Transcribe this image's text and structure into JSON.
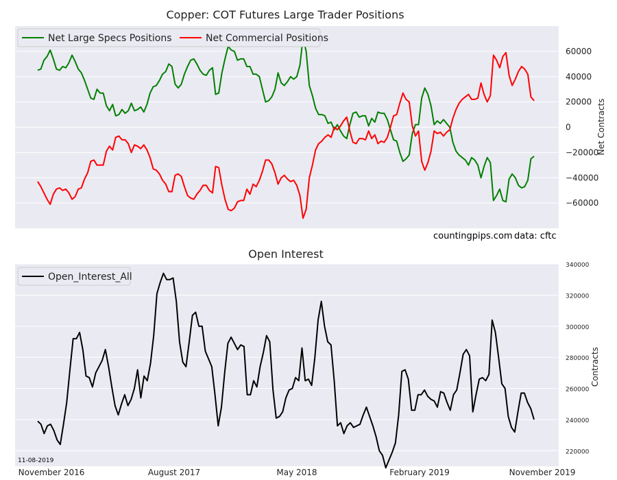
{
  "chart_data": [
    {
      "type": "line",
      "title": "Copper: COT Futures Large Trader Positions",
      "ylabel": "Net Contracts",
      "ylim": [
        -80000,
        80000
      ],
      "yticks": [
        -60000,
        -40000,
        -20000,
        0,
        20000,
        40000,
        60000
      ],
      "ytick_labels": [
        "−60000",
        "−40000",
        "−20000",
        "0",
        "20000",
        "40000",
        "60000"
      ],
      "grid": true,
      "legend_position": "top-left",
      "annotations": [
        "countingpips.com",
        "data: cftc"
      ],
      "series": [
        {
          "name": "Net Large Specs Positions",
          "color": "#008000",
          "values": [
            45000,
            46000,
            53000,
            56000,
            61000,
            54000,
            46000,
            45000,
            48000,
            47000,
            51000,
            57000,
            52000,
            46000,
            43000,
            37000,
            30000,
            23000,
            22000,
            30000,
            27000,
            27000,
            17000,
            13000,
            18000,
            9000,
            10000,
            14000,
            11000,
            13000,
            19000,
            13000,
            14000,
            16000,
            12000,
            18000,
            27000,
            32000,
            33000,
            37000,
            42000,
            44000,
            50000,
            48000,
            34000,
            31000,
            34000,
            42000,
            48000,
            53000,
            54000,
            50000,
            45000,
            42000,
            41000,
            45000,
            47000,
            26000,
            27000,
            43000,
            54000,
            64000,
            61000,
            60000,
            53000,
            54000,
            54000,
            48000,
            48000,
            42000,
            42000,
            40000,
            30000,
            20000,
            21000,
            24000,
            30000,
            43000,
            35000,
            33000,
            36000,
            40000,
            38000,
            40000,
            49000,
            71000,
            60000,
            33000,
            25000,
            15000,
            10000,
            10000,
            9000,
            3000,
            4000,
            -2000,
            2000,
            -3000,
            -7000,
            -9000,
            2000,
            11000,
            12000,
            8000,
            9000,
            9000,
            1000,
            7000,
            4000,
            12000,
            11000,
            11000,
            6000,
            -2000,
            -10000,
            -11000,
            -20000,
            -27000,
            -25000,
            -22000,
            -5000,
            2000,
            2000,
            23000,
            31000,
            26000,
            17000,
            2000,
            5000,
            3000,
            6000,
            3000,
            0,
            -12000,
            -19000,
            -22000,
            -24000,
            -26000,
            -30000,
            -24000,
            -26000,
            -30000,
            -40000,
            -31000,
            -24000,
            -28000,
            -58000,
            -54000,
            -49000,
            -58000,
            -59000,
            -41000,
            -37000,
            -40000,
            -46000,
            -48000,
            -47000,
            -42000,
            -25000,
            -23000
          ]
        },
        {
          "name": "Net Commercial Positions",
          "color": "#ff0000",
          "values": [
            -43000,
            -47000,
            -52000,
            -57000,
            -61000,
            -53000,
            -49000,
            -48000,
            -50000,
            -49000,
            -52000,
            -57000,
            -55000,
            -49000,
            -48000,
            -41000,
            -36000,
            -27000,
            -26000,
            -30000,
            -30000,
            -30000,
            -19000,
            -15000,
            -18000,
            -8000,
            -7000,
            -10000,
            -10000,
            -13000,
            -20000,
            -14000,
            -15000,
            -17000,
            -14000,
            -18000,
            -24000,
            -33000,
            -34000,
            -37000,
            -42000,
            -45000,
            -51000,
            -51000,
            -38000,
            -37000,
            -39000,
            -47000,
            -54000,
            -56000,
            -57000,
            -53000,
            -50000,
            -46000,
            -46000,
            -50000,
            -52000,
            -31000,
            -32000,
            -46000,
            -57000,
            -65000,
            -66000,
            -64000,
            -59000,
            -58000,
            -58000,
            -49000,
            -53000,
            -45000,
            -47000,
            -42000,
            -35000,
            -26000,
            -26000,
            -29000,
            -36000,
            -45000,
            -40000,
            -38000,
            -41000,
            -43000,
            -42000,
            -46000,
            -54000,
            -72000,
            -65000,
            -40000,
            -30000,
            -18000,
            -13000,
            -11000,
            -8000,
            -6000,
            -8000,
            0,
            -2000,
            1000,
            5000,
            8000,
            -3000,
            -12000,
            -13000,
            -9000,
            -9000,
            -10000,
            -3000,
            -9000,
            -6000,
            -13000,
            -11000,
            -12000,
            -8000,
            0,
            9000,
            10000,
            19000,
            27000,
            22000,
            20000,
            1000,
            -7000,
            -3000,
            -27000,
            -34000,
            -28000,
            -19000,
            -3000,
            -5000,
            -4000,
            -7000,
            -4000,
            -2000,
            7000,
            14000,
            19000,
            22000,
            24000,
            26000,
            22000,
            22000,
            23000,
            35000,
            26000,
            20000,
            25000,
            57000,
            53000,
            47000,
            56000,
            59000,
            41000,
            33000,
            38000,
            44000,
            48000,
            46000,
            42000,
            24000,
            21000
          ]
        }
      ]
    },
    {
      "type": "line",
      "title": "Open Interest",
      "ylabel": "Contracts",
      "ylim": [
        210000,
        340000
      ],
      "yticks": [
        220000,
        240000,
        260000,
        280000,
        300000,
        320000,
        340000
      ],
      "ytick_labels": [
        "220000",
        "240000",
        "260000",
        "280000",
        "300000",
        "320000",
        "340000"
      ],
      "x_tick_labels": [
        "November 2016",
        "August 2017",
        "May 2018",
        "February 2019",
        "November 2019"
      ],
      "grid": true,
      "legend_position": "top-left",
      "annotations": [
        "11-08-2019"
      ],
      "series": [
        {
          "name": "Open_Interest_All",
          "color": "#000000",
          "values": [
            239000,
            237000,
            231000,
            236000,
            237000,
            233000,
            227000,
            224000,
            237000,
            251000,
            272000,
            292000,
            292000,
            296000,
            285000,
            268000,
            267000,
            261000,
            270000,
            274000,
            278000,
            285000,
            274000,
            261000,
            249000,
            243000,
            250000,
            256000,
            249000,
            253000,
            260000,
            272000,
            254000,
            268000,
            265000,
            276000,
            294000,
            321000,
            328000,
            334000,
            330000,
            330000,
            331000,
            316000,
            290000,
            277000,
            274000,
            290000,
            307000,
            309000,
            300000,
            300000,
            284000,
            279000,
            274000,
            256000,
            236000,
            248000,
            270000,
            289000,
            293000,
            289000,
            285000,
            288000,
            287000,
            256000,
            256000,
            265000,
            261000,
            274000,
            283000,
            294000,
            290000,
            259000,
            241000,
            242000,
            245000,
            254000,
            259000,
            260000,
            267000,
            265000,
            286000,
            265000,
            266000,
            262000,
            280000,
            304000,
            316000,
            300000,
            290000,
            288000,
            265000,
            236000,
            238000,
            231000,
            236000,
            238000,
            235000,
            236000,
            237000,
            243000,
            248000,
            242000,
            236000,
            229000,
            220000,
            217000,
            209000,
            214000,
            219000,
            225000,
            243000,
            271000,
            272000,
            266000,
            246000,
            246000,
            256000,
            256000,
            259000,
            255000,
            253000,
            252000,
            248000,
            258000,
            257000,
            251000,
            246000,
            256000,
            259000,
            270000,
            282000,
            285000,
            281000,
            245000,
            256000,
            266000,
            267000,
            265000,
            269000,
            304000,
            296000,
            280000,
            263000,
            260000,
            242000,
            235000,
            232000,
            245000,
            257000,
            257000,
            251000,
            247000,
            240000
          ]
        }
      ]
    }
  ]
}
